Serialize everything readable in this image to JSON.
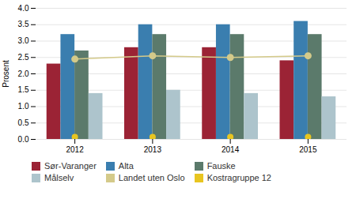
{
  "chart_data": {
    "type": "bar",
    "categories": [
      "2012",
      "2013",
      "2014",
      "2015"
    ],
    "series": [
      {
        "name": "Sør-Varanger",
        "type": "bar",
        "color": "#9B2335",
        "values": [
          2.3,
          2.8,
          2.8,
          2.4
        ]
      },
      {
        "name": "Alta",
        "type": "bar",
        "color": "#3A7EAF",
        "values": [
          3.2,
          3.5,
          3.5,
          3.6
        ]
      },
      {
        "name": "Fauske",
        "type": "bar",
        "color": "#5B7A6B",
        "values": [
          2.7,
          3.2,
          3.2,
          3.2
        ]
      },
      {
        "name": "Målselv",
        "type": "bar",
        "color": "#ADC4CC",
        "values": [
          1.4,
          1.5,
          1.4,
          1.3
        ]
      },
      {
        "name": "Landet uten Oslo",
        "type": "line",
        "marker": "circle",
        "color": "#D4CA8A",
        "values": [
          2.45,
          2.55,
          2.5,
          2.55
        ]
      },
      {
        "name": "Kostragruppe 12",
        "type": "scatter",
        "color": "#E8C520",
        "values": [
          0.07,
          0.07,
          0.07,
          0.07
        ]
      }
    ],
    "ylabel": "Prosent",
    "ylim": [
      0,
      4
    ],
    "yticks": [
      {
        "value": 0,
        "label": "0.0"
      },
      0.5,
      {
        "value": 1,
        "label": "1.0"
      },
      1.5,
      {
        "value": 2,
        "label": "2.0"
      },
      2.5,
      {
        "value": 3,
        "label": "3.0"
      },
      3.5,
      {
        "value": 4,
        "label": "4.0"
      }
    ],
    "grid": true,
    "legend": "bottom"
  }
}
